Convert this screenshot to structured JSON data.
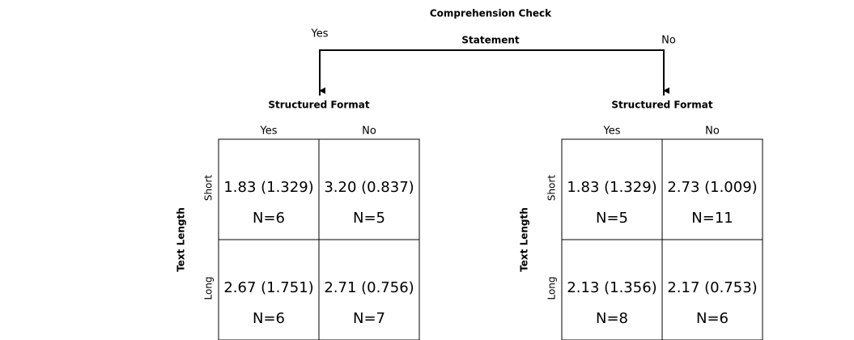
{
  "title": "Comprehension Check",
  "subtitle": "Statement",
  "branches": [
    {
      "label": "Yes",
      "panel": {
        "column_title": "Structured Format",
        "columns": [
          "Yes",
          "No"
        ],
        "row_title": "Text Length",
        "rows": [
          {
            "label": "Short",
            "cells": [
              {
                "stat": "1.83 (1.329)",
                "n": "N=6"
              },
              {
                "stat": "3.20 (0.837)",
                "n": "N=5"
              }
            ]
          },
          {
            "label": "Long",
            "cells": [
              {
                "stat": "2.67 (1.751)",
                "n": "N=6"
              },
              {
                "stat": "2.71 (0.756)",
                "n": "N=7"
              }
            ]
          }
        ]
      }
    },
    {
      "label": "No",
      "panel": {
        "column_title": "Structured Format",
        "columns": [
          "Yes",
          "No"
        ],
        "row_title": "Text Length",
        "rows": [
          {
            "label": "Short",
            "cells": [
              {
                "stat": "1.83 (1.329)",
                "n": "N=5"
              },
              {
                "stat": "2.73 (1.009)",
                "n": "N=11"
              }
            ]
          },
          {
            "label": "Long",
            "cells": [
              {
                "stat": "2.13 (1.356)",
                "n": "N=8"
              },
              {
                "stat": "2.17 (0.753)",
                "n": "N=6"
              }
            ]
          }
        ]
      }
    }
  ]
}
